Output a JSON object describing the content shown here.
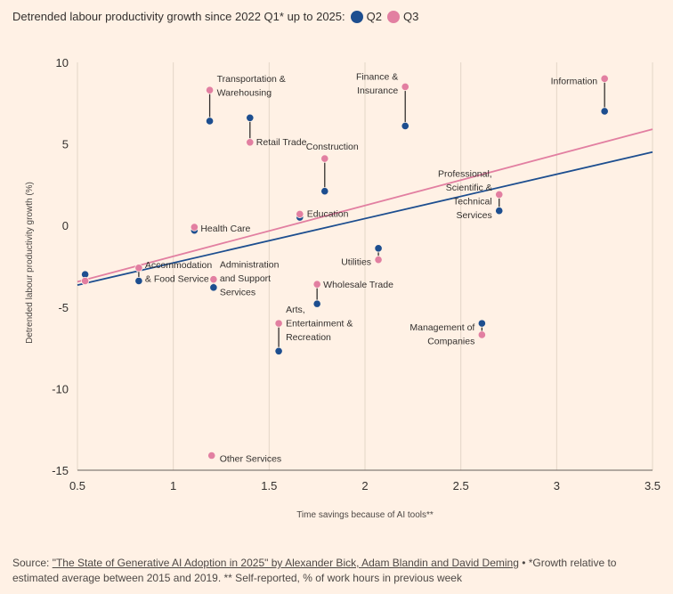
{
  "title": "Detrended labour productivity growth since 2022 Q1* up to 2025:",
  "legend": [
    {
      "name": "Q2",
      "color": "#1d4e8f"
    },
    {
      "name": "Q3",
      "color": "#e27fa1"
    }
  ],
  "source": {
    "prefix": "Source: ",
    "link": "\"The State of Generative AI Adoption in 2025\" by Alexander Bick, Adam Blandin and David Deming",
    "suffix": " • *Growth relative to estimated average between 2015 and 2019. ** Self-reported, % of work hours in previous week"
  },
  "chart_data": {
    "type": "scatter",
    "xlabel": "Time savings because of AI tools**",
    "ylabel": "Detrended labour productivity growth (%)",
    "xlim": [
      0.5,
      3.5
    ],
    "ylim": [
      -15,
      10
    ],
    "xticks": [
      "0.5",
      "1",
      "1.5",
      "2",
      "2.5",
      "3",
      "3.5"
    ],
    "xtick_values": [
      0.5,
      1,
      1.5,
      2,
      2.5,
      3,
      3.5
    ],
    "yticks": [
      "10",
      "5",
      "0",
      "-5",
      "-10",
      "-15"
    ],
    "ytick_values": [
      10,
      5,
      0,
      -5,
      -10,
      -15
    ],
    "grid": "vertical",
    "series_names": [
      "Q2",
      "Q3"
    ],
    "colors": {
      "Q2": "#1d4e8f",
      "Q3": "#e27fa1"
    },
    "points": [
      {
        "label": [
          "Transportation &",
          "Warehousing"
        ],
        "x": 1.19,
        "q2": 6.4,
        "q3": 8.3
      },
      {
        "label": [
          "Retail Trade"
        ],
        "x": 1.4,
        "q2": 6.6,
        "q3": 5.1
      },
      {
        "label": [
          "Construction"
        ],
        "x": 1.79,
        "q2": 2.1,
        "q3": 4.1
      },
      {
        "label": [
          "Finance &",
          "Insurance"
        ],
        "x": 2.21,
        "q2": 6.1,
        "q3": 8.5
      },
      {
        "label": [
          "Information"
        ],
        "x": 3.25,
        "q2": 7.0,
        "q3": 9.0
      },
      {
        "label": [
          "Professional,",
          "Scientific &",
          "Technical",
          "Services"
        ],
        "x": 2.7,
        "q2": 0.9,
        "q3": 1.9
      },
      {
        "label": [
          "Education"
        ],
        "x": 1.66,
        "q2": 0.5,
        "q3": 0.7
      },
      {
        "label": [
          "Health Care"
        ],
        "x": 1.11,
        "q2": -0.3,
        "q3": -0.1
      },
      {
        "label": [
          "Accommodation",
          "& Food Service"
        ],
        "x": 0.82,
        "q2": -3.4,
        "q3": -2.6
      },
      {
        "label": [
          ""
        ],
        "x": 0.54,
        "q2": -3.0,
        "q3": -3.4
      },
      {
        "label": [
          "Administration",
          "and Support",
          "Services"
        ],
        "x": 1.21,
        "q2": -3.8,
        "q3": -3.3
      },
      {
        "label": [
          "Wholesale Trade"
        ],
        "x": 1.75,
        "q2": -4.8,
        "q3": -3.6
      },
      {
        "label": [
          "Utilities"
        ],
        "x": 2.07,
        "q2": -1.4,
        "q3": -2.1
      },
      {
        "label": [
          "Arts,",
          "Entertainment &",
          "Recreation"
        ],
        "x": 1.55,
        "q2": -7.7,
        "q3": -6.0
      },
      {
        "label": [
          "Management of",
          "Companies"
        ],
        "x": 2.61,
        "q2": -6.0,
        "q3": -6.7
      },
      {
        "label": [
          "Other Services"
        ],
        "x": 1.2,
        "q2": -14.1,
        "q3": -14.1
      }
    ],
    "trendlines": [
      {
        "series": "Q2",
        "from": [
          0.5,
          -3.65
        ],
        "to": [
          3.5,
          4.5
        ]
      },
      {
        "series": "Q3",
        "from": [
          0.5,
          -3.45
        ],
        "to": [
          3.5,
          5.9
        ]
      }
    ]
  }
}
